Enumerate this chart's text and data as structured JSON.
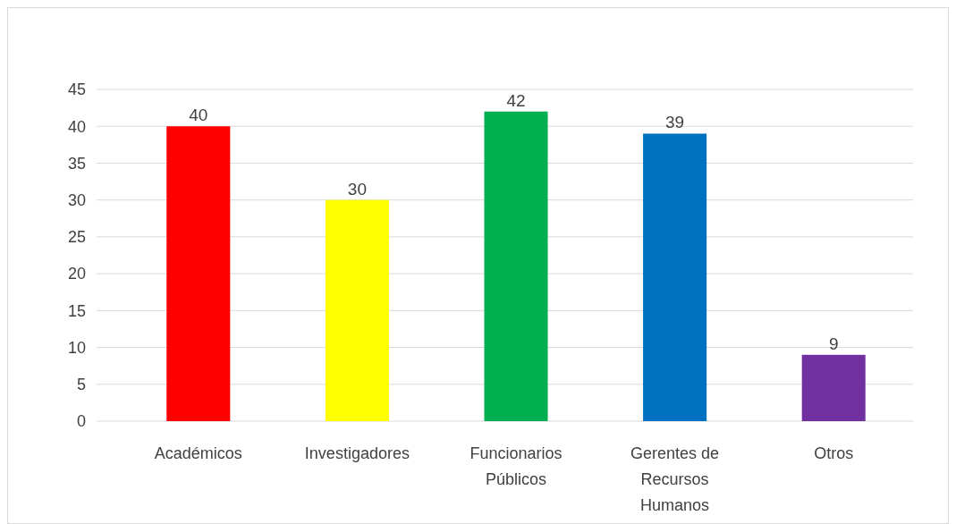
{
  "chart_data": {
    "type": "bar",
    "categories": [
      "Académicos",
      "Investigadores",
      "Funcionarios Públicos",
      "Gerentes de Recursos Humanos",
      "Otros"
    ],
    "values": [
      40,
      30,
      42,
      39,
      9
    ],
    "colors": [
      "#ff0000",
      "#ffff00",
      "#00b050",
      "#0070c0",
      "#7030a0"
    ],
    "ylim": [
      0,
      45
    ],
    "yticks": [
      0,
      5,
      10,
      15,
      20,
      25,
      30,
      35,
      40,
      45
    ],
    "grid": "y",
    "data_labels": true
  }
}
